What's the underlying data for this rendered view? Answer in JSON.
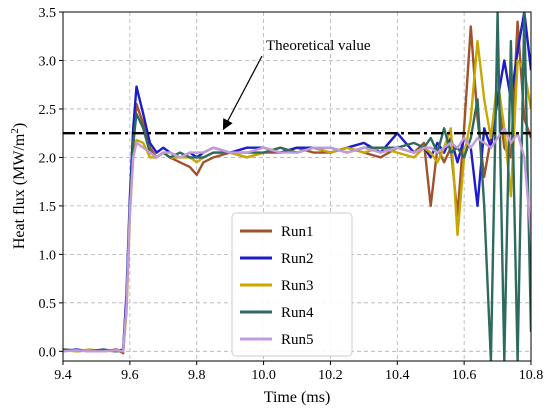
{
  "chart_data": {
    "type": "line",
    "xlabel": "Time (ms)",
    "ylabel_main": "Heat flux (MW/m",
    "ylabel_sup": "2",
    "ylabel_close": ")",
    "xlim": [
      9.4,
      10.8
    ],
    "ylim": [
      -0.1,
      3.5
    ],
    "xticks": [
      "9.4",
      "9.6",
      "9.8",
      "10.0",
      "10.2",
      "10.4",
      "10.6",
      "10.8"
    ],
    "yticks": [
      "0.0",
      "0.5",
      "1.0",
      "1.5",
      "2.0",
      "2.5",
      "3.0",
      "3.5"
    ],
    "grid": true,
    "legend_position": "bottom-center",
    "theoretical": {
      "label": "Theoretical value",
      "value": 2.25,
      "arrow_target_x": 9.88
    },
    "series": [
      {
        "name": "Run1",
        "color": "#a0522d",
        "x": [
          9.4,
          9.44,
          9.48,
          9.52,
          9.56,
          9.58,
          9.59,
          9.6,
          9.61,
          9.62,
          9.64,
          9.66,
          9.68,
          9.7,
          9.72,
          9.75,
          9.78,
          9.8,
          9.82,
          9.85,
          9.9,
          9.95,
          10.0,
          10.05,
          10.1,
          10.15,
          10.2,
          10.25,
          10.3,
          10.35,
          10.4,
          10.45,
          10.48,
          10.5,
          10.52,
          10.54,
          10.56,
          10.58,
          10.6,
          10.62,
          10.64,
          10.66,
          10.68,
          10.7,
          10.72,
          10.74,
          10.76,
          10.78,
          10.8
        ],
        "y": [
          0.02,
          0.0,
          0.01,
          0.0,
          0.02,
          -0.02,
          0.5,
          1.5,
          2.1,
          2.55,
          2.35,
          2.1,
          2.0,
          2.05,
          2.0,
          1.95,
          1.9,
          1.82,
          1.95,
          2.0,
          2.05,
          2.0,
          2.05,
          2.05,
          2.1,
          2.05,
          2.05,
          2.1,
          2.05,
          2.0,
          2.1,
          2.05,
          2.15,
          1.5,
          2.1,
          1.95,
          2.1,
          1.4,
          2.3,
          3.35,
          2.4,
          1.8,
          2.2,
          2.7,
          2.1,
          2.0,
          3.4,
          2.4,
          2.2
        ]
      },
      {
        "name": "Run2",
        "color": "#1c1ccc",
        "x": [
          9.4,
          9.44,
          9.48,
          9.52,
          9.56,
          9.58,
          9.59,
          9.6,
          9.61,
          9.62,
          9.64,
          9.66,
          9.68,
          9.7,
          9.72,
          9.75,
          9.78,
          9.8,
          9.82,
          9.85,
          9.9,
          9.95,
          10.0,
          10.05,
          10.1,
          10.15,
          10.2,
          10.25,
          10.3,
          10.35,
          10.4,
          10.45,
          10.48,
          10.5,
          10.52,
          10.54,
          10.56,
          10.58,
          10.6,
          10.62,
          10.64,
          10.66,
          10.68,
          10.7,
          10.72,
          10.74,
          10.76,
          10.78,
          10.8
        ],
        "y": [
          0.0,
          0.02,
          0.0,
          0.01,
          0.0,
          0.02,
          0.6,
          1.6,
          2.3,
          2.73,
          2.45,
          2.15,
          2.05,
          2.1,
          2.05,
          2.0,
          2.05,
          2.0,
          2.05,
          2.1,
          2.05,
          2.1,
          2.1,
          2.05,
          2.1,
          2.1,
          2.05,
          2.1,
          2.15,
          2.05,
          2.25,
          2.05,
          2.1,
          2.0,
          2.15,
          2.05,
          2.2,
          1.95,
          2.2,
          2.1,
          1.5,
          2.3,
          2.1,
          2.6,
          3.0,
          2.6,
          3.1,
          3.5,
          2.9
        ]
      },
      {
        "name": "Run3",
        "color": "#c8a800",
        "x": [
          9.4,
          9.44,
          9.48,
          9.52,
          9.56,
          9.58,
          9.59,
          9.6,
          9.61,
          9.62,
          9.64,
          9.66,
          9.68,
          9.7,
          9.72,
          9.75,
          9.78,
          9.8,
          9.82,
          9.85,
          9.9,
          9.95,
          10.0,
          10.05,
          10.1,
          10.15,
          10.2,
          10.25,
          10.3,
          10.35,
          10.4,
          10.45,
          10.48,
          10.5,
          10.52,
          10.54,
          10.56,
          10.58,
          10.6,
          10.62,
          10.64,
          10.66,
          10.68,
          10.7,
          10.72,
          10.74,
          10.76,
          10.78,
          10.8
        ],
        "y": [
          0.01,
          0.0,
          0.02,
          0.0,
          0.01,
          0.0,
          0.4,
          1.4,
          2.0,
          2.18,
          2.15,
          2.0,
          2.0,
          2.05,
          2.0,
          2.0,
          2.0,
          1.95,
          2.0,
          2.05,
          2.05,
          2.0,
          2.05,
          2.1,
          2.05,
          2.1,
          2.05,
          2.1,
          2.05,
          2.1,
          2.05,
          2.0,
          2.1,
          2.05,
          1.95,
          2.1,
          2.3,
          1.2,
          2.0,
          2.4,
          3.2,
          2.6,
          2.2,
          2.8,
          2.3,
          1.6,
          3.0,
          2.9,
          2.5
        ]
      },
      {
        "name": "Run4",
        "color": "#2e6b5e",
        "x": [
          9.4,
          9.44,
          9.48,
          9.52,
          9.56,
          9.58,
          9.59,
          9.6,
          9.61,
          9.62,
          9.64,
          9.66,
          9.68,
          9.7,
          9.72,
          9.75,
          9.78,
          9.8,
          9.82,
          9.85,
          9.9,
          9.95,
          10.0,
          10.05,
          10.1,
          10.15,
          10.2,
          10.25,
          10.3,
          10.35,
          10.4,
          10.45,
          10.48,
          10.5,
          10.52,
          10.54,
          10.56,
          10.58,
          10.6,
          10.62,
          10.64,
          10.66,
          10.68,
          10.7,
          10.72,
          10.74,
          10.76,
          10.78,
          10.8
        ],
        "y": [
          0.02,
          0.01,
          0.0,
          0.02,
          0.0,
          0.01,
          0.5,
          1.5,
          2.15,
          2.45,
          2.3,
          2.05,
          2.0,
          2.05,
          2.0,
          2.05,
          2.0,
          2.0,
          2.0,
          2.05,
          2.05,
          2.05,
          2.05,
          2.1,
          2.05,
          2.1,
          2.1,
          2.05,
          2.1,
          2.1,
          2.1,
          2.15,
          2.1,
          2.2,
          2.05,
          2.3,
          2.05,
          2.1,
          2.0,
          2.2,
          2.6,
          1.5,
          -0.1,
          3.5,
          -0.1,
          3.2,
          -0.1,
          3.5,
          0.2
        ]
      },
      {
        "name": "Run5",
        "color": "#c49bd9",
        "x": [
          9.4,
          9.44,
          9.48,
          9.52,
          9.56,
          9.58,
          9.59,
          9.6,
          9.61,
          9.62,
          9.64,
          9.66,
          9.68,
          9.7,
          9.72,
          9.75,
          9.78,
          9.8,
          9.82,
          9.85,
          9.9,
          9.95,
          10.0,
          10.05,
          10.1,
          10.15,
          10.2,
          10.25,
          10.3,
          10.35,
          10.4,
          10.45,
          10.48,
          10.5,
          10.52,
          10.54,
          10.56,
          10.58,
          10.6,
          10.62,
          10.64,
          10.66,
          10.68,
          10.7,
          10.72,
          10.74,
          10.76,
          10.78,
          10.8
        ],
        "y": [
          0.0,
          0.01,
          0.0,
          0.0,
          0.01,
          0.0,
          0.45,
          1.45,
          2.0,
          2.15,
          2.1,
          2.05,
          2.0,
          2.05,
          2.05,
          2.0,
          2.05,
          2.05,
          2.05,
          2.1,
          2.05,
          2.05,
          2.1,
          2.05,
          2.05,
          2.1,
          2.1,
          2.05,
          2.1,
          2.05,
          2.1,
          2.05,
          2.1,
          2.1,
          2.05,
          2.1,
          2.15,
          2.1,
          2.2,
          2.1,
          2.2,
          2.15,
          2.1,
          2.2,
          2.3,
          2.15,
          2.25,
          2.0,
          1.2
        ]
      }
    ]
  }
}
